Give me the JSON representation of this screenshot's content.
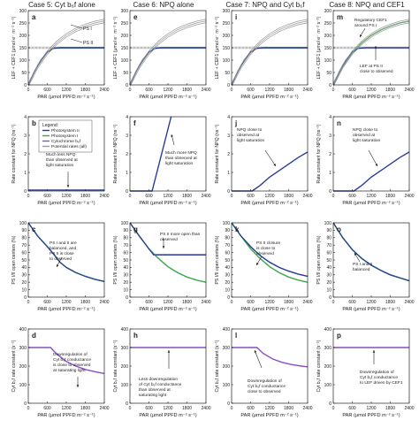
{
  "columns": [
    "Case 5: Cyt b₆f alone",
    "Case 6: NPQ alone",
    "Case 7: NPQ and Cyt b₆f",
    "Case 8: NPQ and CEF1"
  ],
  "row_ylabels": [
    "LEF + CEF1 (μmol e⁻ m⁻² s⁻¹)",
    "Rate constant for NPQ (ns⁻¹)",
    "PS I/II open centers (%)",
    "Cyt b₆f rate constant (s⁻¹)"
  ],
  "xlabel": "PAR (μmol PPFD m⁻² s⁻¹)",
  "x_ticks": [
    "0",
    "600",
    "1200",
    "1800",
    "2400"
  ],
  "row_yticks": [
    [
      "0",
      "50",
      "100",
      "150",
      "200",
      "250",
      "300"
    ],
    [
      "0",
      "1",
      "2",
      "3",
      "4"
    ],
    [
      "0",
      "10",
      "20",
      "30",
      "40",
      "50",
      "60",
      "70",
      "80",
      "90",
      "100"
    ],
    [
      "0",
      "100",
      "200",
      "300",
      "400"
    ]
  ],
  "legend": {
    "title": "Legend:",
    "items": [
      "Photosystem II",
      "Photosystem I",
      "Cytochrome b₆f",
      "Potential rates (all)"
    ]
  },
  "colors": {
    "psii": "#2b3b9c",
    "psi": "#3aa84a",
    "cytb6f": "#8a4fc4",
    "potential": "#9a9a9a",
    "observed_band": "#d6d6d6"
  },
  "panel_letters": [
    "a",
    "e",
    "i",
    "m",
    "b",
    "f",
    "j",
    "n",
    "c",
    "g",
    "k",
    "o",
    "d",
    "h",
    "l",
    "p"
  ],
  "annotations": {
    "a": [
      "PS I",
      "PS II"
    ],
    "b": [
      "Much less NPQ",
      "than observed at",
      "light saturation"
    ],
    "c": [
      "PS I and II are",
      "balanced, and",
      "PS II is close",
      "to observed"
    ],
    "d": [
      "Downregulation of",
      "Cyt b₆f conductance",
      "is close to observed",
      "at saturating light"
    ],
    "f": [
      "Much more NPQ",
      "than observed at",
      "light saturation"
    ],
    "g": [
      "PS II more open than",
      "observed"
    ],
    "h": [
      "Less downregulation",
      "of Cyt b₆f conductance",
      "than observed at",
      "saturating light"
    ],
    "j": [
      "NPQ close to",
      "observed at",
      "light saturation"
    ],
    "k": [
      "PS II closure",
      "is close to",
      "observed"
    ],
    "l": [
      "Downregulation of",
      "Cyt b₆f conductance",
      "close to observed"
    ],
    "m": [
      "Regulatory CEF1",
      "around PS I"
    ],
    "m2": [
      "LEF at PS II",
      "close to observed"
    ],
    "n": [
      "NPQ close to",
      "observed at",
      "light saturation"
    ],
    "o": [
      "PS I and II",
      "balanced"
    ],
    "p": [
      "Downregulation of",
      "Cyt b₆f conductance",
      "to LEF driven by CEF1"
    ]
  },
  "chart_data": [
    {
      "id": "a",
      "type": "line",
      "title": "Case 5: Cyt b₆f alone",
      "xlim": [
        0,
        2400
      ],
      "ylim": [
        0,
        300
      ],
      "series": [
        {
          "name": "PS I",
          "x": [
            0,
            200,
            400,
            600,
            800,
            1000,
            2400
          ],
          "y": [
            0,
            55,
            100,
            132,
            148,
            150,
            150
          ]
        },
        {
          "name": "PS II",
          "x": [
            0,
            200,
            400,
            600,
            800,
            1000,
            2400
          ],
          "y": [
            0,
            55,
            100,
            132,
            148,
            150,
            150
          ]
        },
        {
          "name": "Potential rates (all)",
          "x": [
            0,
            300,
            600,
            900,
            1200,
            1500,
            1800,
            2100,
            2400
          ],
          "y": [
            0,
            75,
            130,
            170,
            200,
            222,
            238,
            250,
            258
          ]
        }
      ]
    },
    {
      "id": "e",
      "type": "line",
      "title": "Case 6: NPQ alone",
      "xlim": [
        0,
        2400
      ],
      "ylim": [
        0,
        300
      ],
      "series": [
        {
          "name": "PS I",
          "x": [
            0,
            200,
            400,
            600,
            800,
            1000,
            2400
          ],
          "y": [
            0,
            55,
            100,
            132,
            148,
            150,
            150
          ]
        },
        {
          "name": "PS II",
          "x": [
            0,
            200,
            400,
            600,
            800,
            1000,
            2400
          ],
          "y": [
            0,
            55,
            100,
            132,
            148,
            150,
            150
          ]
        },
        {
          "name": "Potential rates (all)",
          "x": [
            0,
            300,
            600,
            900,
            1200,
            1500,
            1800,
            2100,
            2400
          ],
          "y": [
            0,
            75,
            130,
            170,
            200,
            222,
            238,
            250,
            258
          ]
        }
      ]
    },
    {
      "id": "i",
      "type": "line",
      "title": "Case 7: NPQ and Cyt b₆f",
      "xlim": [
        0,
        2400
      ],
      "ylim": [
        0,
        300
      ],
      "series": [
        {
          "name": "PS I",
          "x": [
            0,
            200,
            400,
            600,
            800,
            1000,
            2400
          ],
          "y": [
            0,
            55,
            100,
            132,
            148,
            150,
            150
          ]
        },
        {
          "name": "PS II",
          "x": [
            0,
            200,
            400,
            600,
            800,
            1000,
            2400
          ],
          "y": [
            0,
            55,
            100,
            132,
            148,
            150,
            150
          ]
        },
        {
          "name": "Potential rates (all)",
          "x": [
            0,
            300,
            600,
            900,
            1200,
            1500,
            1800,
            2100,
            2400
          ],
          "y": [
            0,
            75,
            130,
            170,
            200,
            222,
            238,
            250,
            258
          ]
        }
      ]
    },
    {
      "id": "m",
      "type": "line",
      "title": "Case 8: NPQ and CEF1",
      "xlim": [
        0,
        2400
      ],
      "ylim": [
        0,
        300
      ],
      "series": [
        {
          "name": "PS I",
          "x": [
            0,
            300,
            600,
            900,
            1200,
            1500,
            1800,
            2100,
            2400
          ],
          "y": [
            0,
            75,
            130,
            170,
            200,
            222,
            238,
            250,
            258
          ]
        },
        {
          "name": "PS II",
          "x": [
            0,
            200,
            400,
            600,
            800,
            1000,
            2400
          ],
          "y": [
            0,
            55,
            100,
            132,
            148,
            150,
            150
          ]
        },
        {
          "name": "Potential rates (all)",
          "x": [
            0,
            300,
            600,
            900,
            1200,
            1500,
            1800,
            2100,
            2400
          ],
          "y": [
            0,
            75,
            130,
            170,
            200,
            222,
            238,
            250,
            258
          ]
        }
      ]
    },
    {
      "id": "b",
      "type": "line",
      "xlim": [
        0,
        2400
      ],
      "ylim": [
        0,
        4
      ],
      "series": [
        {
          "name": "Photosystem II",
          "x": [
            0,
            2400
          ],
          "y": [
            0.05,
            0.05
          ]
        }
      ]
    },
    {
      "id": "f",
      "type": "line",
      "xlim": [
        0,
        2400
      ],
      "ylim": [
        0,
        4
      ],
      "series": [
        {
          "name": "Photosystem II",
          "x": [
            0,
            700,
            1300
          ],
          "y": [
            0,
            0,
            4
          ]
        }
      ]
    },
    {
      "id": "j",
      "type": "line",
      "xlim": [
        0,
        2400
      ],
      "ylim": [
        0,
        4
      ],
      "series": [
        {
          "name": "Photosystem II",
          "x": [
            0,
            650,
            900,
            1200,
            1500,
            1800,
            2100,
            2400
          ],
          "y": [
            0,
            0,
            0.3,
            0.75,
            1.1,
            1.45,
            1.8,
            2.1
          ]
        }
      ]
    },
    {
      "id": "n",
      "type": "line",
      "xlim": [
        0,
        2400
      ],
      "ylim": [
        0,
        4
      ],
      "series": [
        {
          "name": "Photosystem II",
          "x": [
            0,
            650,
            900,
            1200,
            1500,
            1800,
            2100,
            2400
          ],
          "y": [
            0,
            0,
            0.3,
            0.75,
            1.1,
            1.45,
            1.8,
            2.1
          ]
        }
      ]
    },
    {
      "id": "c",
      "type": "line",
      "xlim": [
        0,
        2400
      ],
      "ylim": [
        0,
        100
      ],
      "series": [
        {
          "name": "Photosystem II",
          "x": [
            0,
            300,
            600,
            800,
            1000,
            1200,
            1500,
            1800,
            2100,
            2400
          ],
          "y": [
            100,
            82,
            68,
            58,
            47,
            40,
            33,
            28,
            24,
            21
          ]
        },
        {
          "name": "Photosystem I",
          "x": [
            0,
            300,
            600,
            800,
            1000,
            1200,
            1500,
            1800,
            2100,
            2400
          ],
          "y": [
            100,
            82,
            68,
            58,
            47,
            40,
            33,
            28,
            24,
            21
          ]
        }
      ]
    },
    {
      "id": "g",
      "type": "line",
      "xlim": [
        0,
        2400
      ],
      "ylim": [
        0,
        100
      ],
      "series": [
        {
          "name": "Photosystem II",
          "x": [
            0,
            300,
            600,
            750,
            2400
          ],
          "y": [
            100,
            82,
            65,
            57,
            57
          ]
        },
        {
          "name": "Photosystem I",
          "x": [
            0,
            300,
            600,
            900,
            1200,
            1500,
            1800,
            2100,
            2400
          ],
          "y": [
            100,
            82,
            65,
            52,
            41,
            33,
            27,
            23,
            20
          ]
        }
      ]
    },
    {
      "id": "k",
      "type": "line",
      "xlim": [
        0,
        2400
      ],
      "ylim": [
        0,
        100
      ],
      "series": [
        {
          "name": "Photosystem II",
          "x": [
            0,
            300,
            600,
            900,
            1200,
            1500,
            1800,
            2100,
            2400
          ],
          "y": [
            100,
            82,
            68,
            56,
            47,
            40,
            35,
            31,
            28
          ]
        },
        {
          "name": "Photosystem I",
          "x": [
            0,
            300,
            600,
            900,
            1200,
            1500,
            1800,
            2100,
            2400
          ],
          "y": [
            100,
            82,
            65,
            52,
            41,
            33,
            27,
            23,
            20
          ]
        }
      ]
    },
    {
      "id": "o",
      "type": "line",
      "xlim": [
        0,
        2400
      ],
      "ylim": [
        0,
        100
      ],
      "series": [
        {
          "name": "Photosystem II",
          "x": [
            0,
            300,
            600,
            900,
            1200,
            1500,
            1800,
            2100,
            2400
          ],
          "y": [
            100,
            80,
            64,
            52,
            43,
            36,
            30,
            26,
            22
          ]
        },
        {
          "name": "Photosystem I",
          "x": [
            0,
            300,
            600,
            900,
            1200,
            1500,
            1800,
            2100,
            2400
          ],
          "y": [
            100,
            80,
            64,
            52,
            43,
            36,
            30,
            26,
            22
          ]
        }
      ]
    },
    {
      "id": "d",
      "type": "line",
      "xlim": [
        0,
        2400
      ],
      "ylim": [
        0,
        400
      ],
      "series": [
        {
          "name": "Cytochrome b₆f",
          "x": [
            0,
            700,
            900,
            1200,
            1500,
            1800,
            2100,
            2400
          ],
          "y": [
            300,
            300,
            265,
            225,
            200,
            182,
            170,
            160
          ]
        }
      ]
    },
    {
      "id": "h",
      "type": "line",
      "xlim": [
        0,
        2400
      ],
      "ylim": [
        0,
        400
      ],
      "series": [
        {
          "name": "Cytochrome b₆f",
          "x": [
            0,
            2400
          ],
          "y": [
            300,
            300
          ]
        }
      ]
    },
    {
      "id": "l",
      "type": "line",
      "xlim": [
        0,
        2400
      ],
      "ylim": [
        0,
        400
      ],
      "series": [
        {
          "name": "Cytochrome b₆f",
          "x": [
            0,
            800,
            1000,
            1300,
            1600,
            1900,
            2200,
            2400
          ],
          "y": [
            300,
            300,
            268,
            238,
            220,
            208,
            200,
            196
          ]
        }
      ]
    },
    {
      "id": "p",
      "type": "line",
      "xlim": [
        0,
        2400
      ],
      "ylim": [
        0,
        400
      ],
      "series": [
        {
          "name": "Cytochrome b₆f",
          "x": [
            0,
            2400
          ],
          "y": [
            300,
            300
          ]
        }
      ]
    }
  ]
}
